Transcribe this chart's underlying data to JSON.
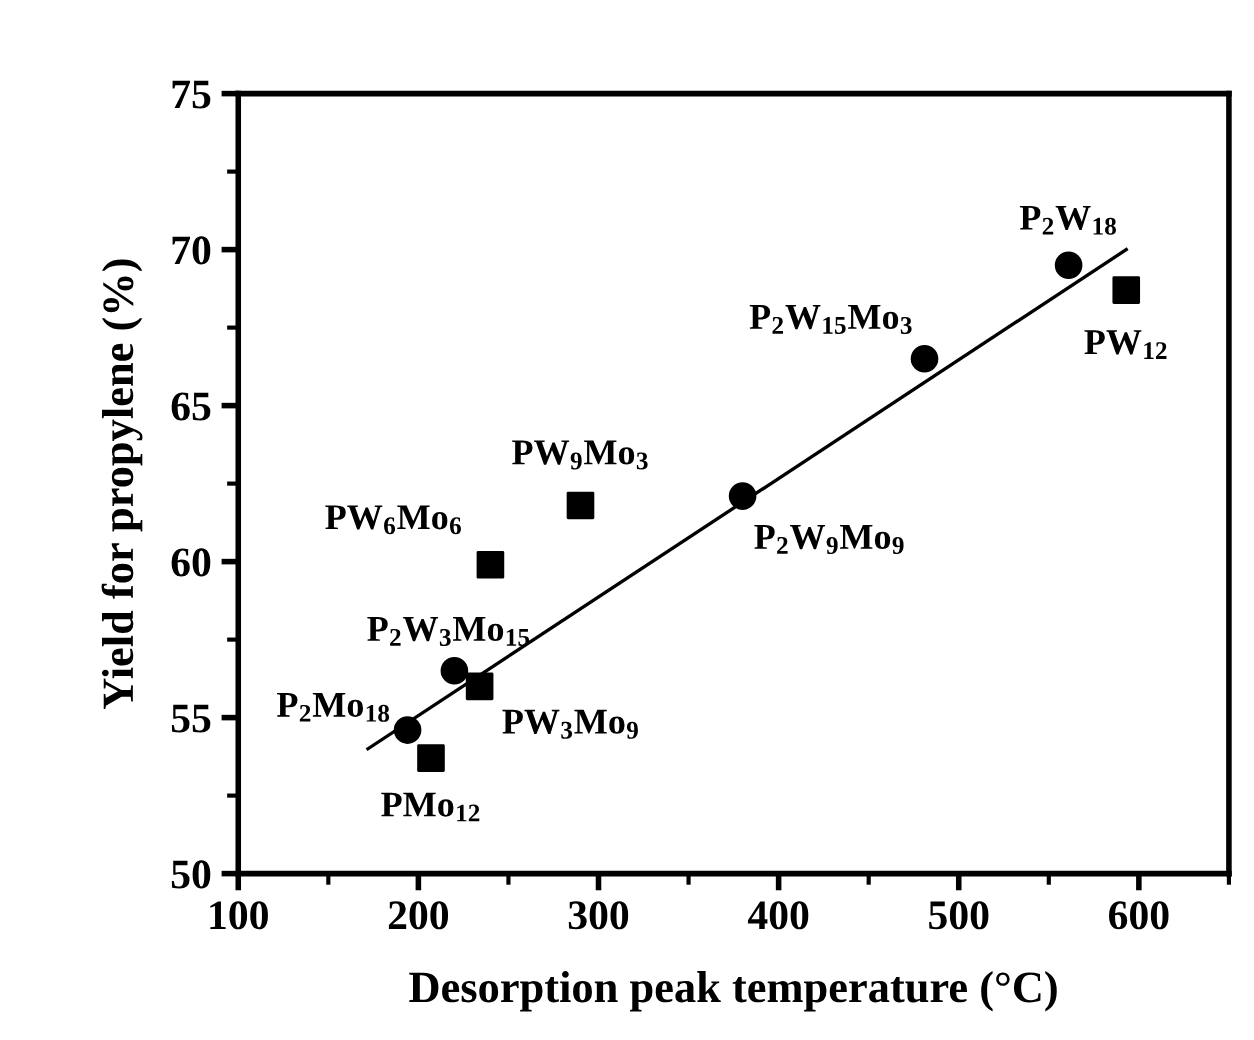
{
  "chart_data": {
    "type": "scatter",
    "xlabel": "Desorption peak temperature (°C)",
    "ylabel": "Yield for propylene (%)",
    "xlim": [
      100,
      650
    ],
    "xticks": [
      100,
      200,
      300,
      400,
      500,
      600
    ],
    "ylim": [
      50,
      75
    ],
    "yticks": [
      50,
      55,
      60,
      65,
      70,
      75
    ],
    "grid": false,
    "series": [
      {
        "marker": "circle",
        "color": "#000000",
        "x": [
          194,
          220,
          380,
          481,
          561
        ],
        "values": [
          54.6,
          56.5,
          62.1,
          66.5,
          69.5
        ]
      },
      {
        "marker": "square",
        "color": "#000000",
        "x": [
          207,
          234,
          240,
          290,
          593
        ],
        "values": [
          53.7,
          56.0,
          59.9,
          61.8,
          68.7
        ]
      },
      {
        "type": "line",
        "marker": "none",
        "line_style": "solid",
        "color": "#000000",
        "x": [
          172,
          593
        ],
        "values": [
          54.0,
          70.0
        ]
      }
    ],
    "annotations": [
      {
        "text": "P$_{2}$Mo$_{18}$",
        "x": 194,
        "y": 54.6
      },
      {
        "text": "P$_{2}$W$_{3}$Mo$_{15}$",
        "x": 220,
        "y": 56.5
      },
      {
        "text": "P$_{2}$W$_{9}$Mo$_{9}$",
        "x": 380,
        "y": 62.1
      },
      {
        "text": "P$_{2}$W$_{15}$Mo$_{3}$",
        "x": 481,
        "y": 66.5
      },
      {
        "text": "P$_{2}$W$_{18}$",
        "x": 561,
        "y": 69.5
      },
      {
        "text": "PMo$_{12}$",
        "x": 207,
        "y": 53.7
      },
      {
        "text": "PW$_{3}$Mo$_{9}$",
        "x": 234,
        "y": 56.0
      },
      {
        "text": "PW$_{6}$Mo$_{6}$",
        "x": 240,
        "y": 59.9
      },
      {
        "text": "PW$_{9}$Mo$_{3}$",
        "x": 290,
        "y": 61.8
      },
      {
        "text": "PW$_{12}$",
        "x": 593,
        "y": 68.7
      }
    ]
  }
}
